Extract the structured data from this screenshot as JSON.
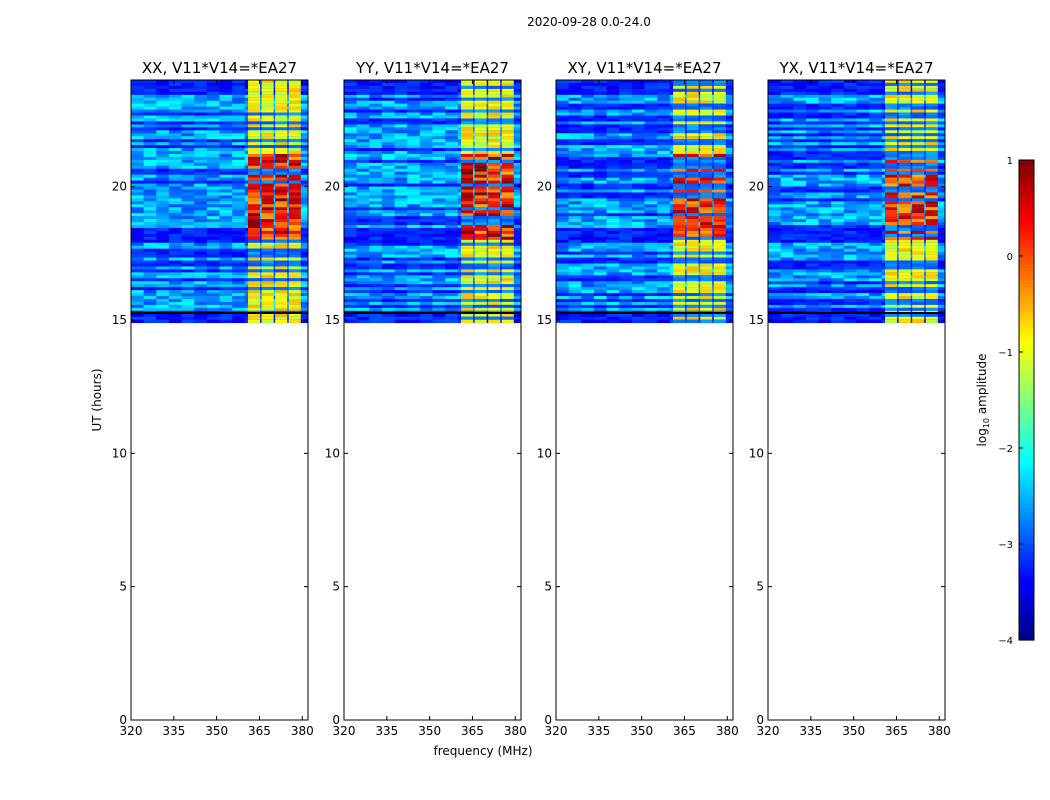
{
  "chart_data": {
    "type": "heatmap",
    "suptitle": "2020-09-28 0.0-24.0",
    "ylabel": "UT (hours)",
    "xlabel": "frequency (MHz)",
    "xlim": [
      320,
      382
    ],
    "ylim": [
      0,
      24
    ],
    "xticks": [
      320,
      335,
      350,
      365,
      380
    ],
    "yticks": [
      0,
      5,
      10,
      15,
      20
    ],
    "data_time_range": [
      14.9,
      24.0
    ],
    "bright_band_mhz": [
      361,
      380
    ],
    "panels": [
      {
        "title": "XX, V11*V14=*EA27",
        "max_log_amplitude": 0.8
      },
      {
        "title": "YY, V11*V14=*EA27",
        "max_log_amplitude": 0.9
      },
      {
        "title": "XY, V11*V14=*EA27",
        "max_log_amplitude": 0.6
      },
      {
        "title": "YX, V11*V14=*EA27",
        "max_log_amplitude": 0.6
      }
    ],
    "colorbar": {
      "label": "log10 amplitude",
      "label_base": "log",
      "label_sub": "10",
      "label_rest": " amplitude",
      "range": [
        -4,
        1
      ],
      "ticks": [
        "1",
        "0",
        "−1",
        "−2",
        "−3",
        "−4"
      ],
      "colormap": "jet"
    }
  }
}
